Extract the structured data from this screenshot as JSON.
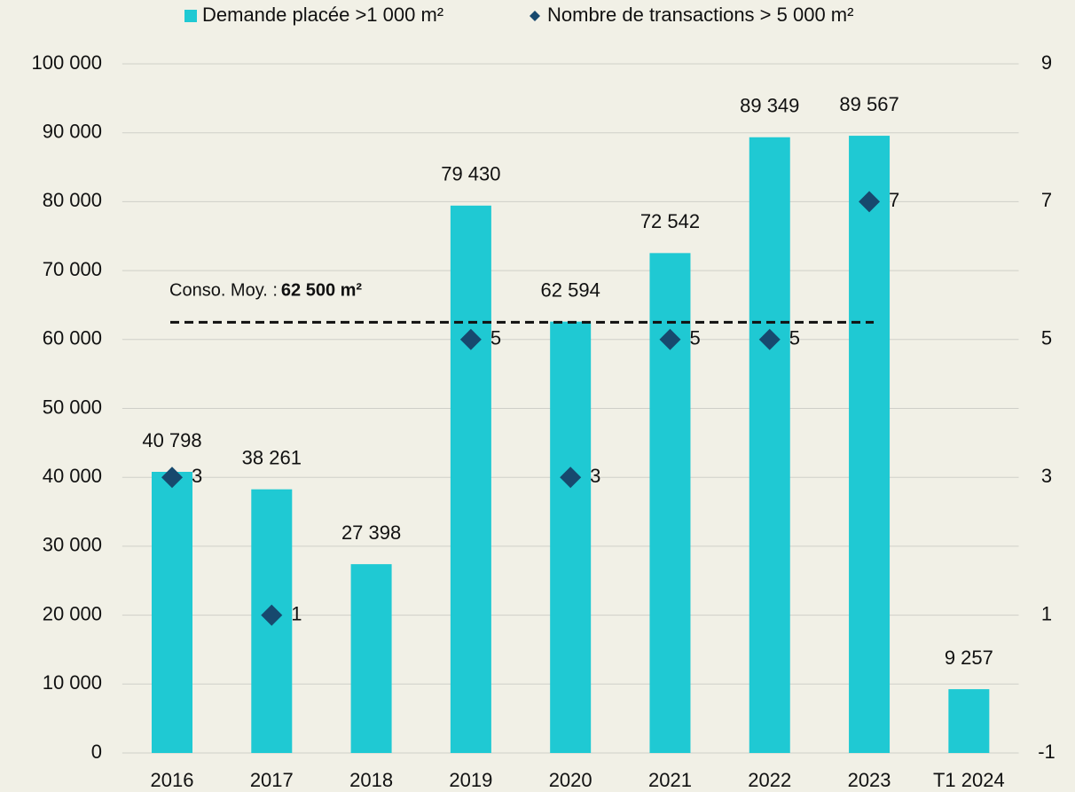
{
  "chart_data": {
    "type": "bar",
    "categories": [
      "2016",
      "2017",
      "2018",
      "2019",
      "2020",
      "2021",
      "2022",
      "2023",
      "T1 2024"
    ],
    "series": [
      {
        "name": "Demande placée >1 000 m²",
        "color": "#1fc9d3",
        "type": "bar",
        "values": [
          40798,
          38261,
          27398,
          79430,
          62594,
          72542,
          89349,
          89567,
          9257
        ],
        "value_labels": [
          "40 798",
          "38 261",
          "27 398",
          "79 430",
          "62 594",
          "72 542",
          "89 349",
          "89 567",
          "9 257"
        ]
      },
      {
        "name": "Nombre de transactions > 5 000 m²",
        "color": "#17496e",
        "type": "scatter",
        "axis": "y2",
        "values": [
          3,
          1,
          null,
          5,
          3,
          5,
          5,
          7,
          null
        ]
      }
    ],
    "ylim": [
      0,
      100000
    ],
    "yticks": [
      0,
      {
        "value": 10000,
        "label": "10 000"
      },
      {
        "value": 20000,
        "label": "20 000"
      },
      {
        "value": 30000,
        "label": "30 000"
      },
      {
        "value": 40000,
        "label": "40 000"
      },
      {
        "value": 50000,
        "label": "50 000"
      },
      {
        "value": 60000,
        "label": "60 000"
      },
      {
        "value": 70000,
        "label": "70 000"
      },
      {
        "value": 80000,
        "label": "80 000"
      },
      {
        "value": 90000,
        "label": "90 000"
      },
      {
        "value": 100000,
        "label": "100 000"
      }
    ],
    "y2lim": [
      -1,
      9
    ],
    "y2ticks": [
      -1,
      1,
      3,
      5,
      7,
      9
    ],
    "grid": true,
    "legend": "top",
    "reference_line": {
      "value": 62500,
      "prefix": "Conso. Moy. :",
      "label": "62 500 m²",
      "color": "#111111"
    }
  }
}
